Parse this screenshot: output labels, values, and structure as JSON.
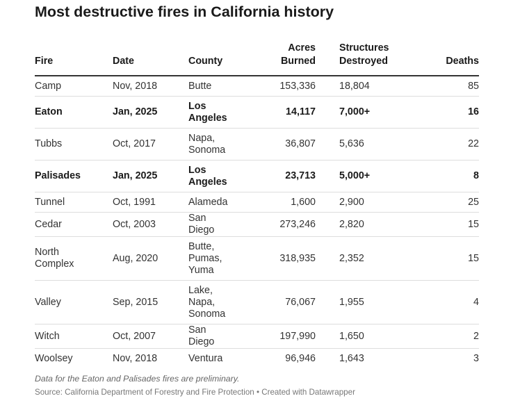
{
  "chart_data": {
    "type": "table",
    "title": "Most destructive fires in California history",
    "columns": [
      {
        "key": "fire",
        "label": "Fire"
      },
      {
        "key": "date",
        "label": "Date"
      },
      {
        "key": "county",
        "label": "County"
      },
      {
        "key": "acres",
        "label": "Acres Burned"
      },
      {
        "key": "structures",
        "label": "Structures Destroyed"
      },
      {
        "key": "deaths",
        "label": "Deaths"
      }
    ],
    "rows": [
      {
        "fire": "Camp",
        "date": "Nov, 2018",
        "county": "Butte",
        "acres": "153,336",
        "structures": "18,804",
        "deaths": "85",
        "highlighted": false
      },
      {
        "fire": "Eaton",
        "date": "Jan, 2025",
        "county": "Los Angeles",
        "acres": "14,117",
        "structures": "7,000+",
        "deaths": "16",
        "highlighted": true
      },
      {
        "fire": "Tubbs",
        "date": "Oct, 2017",
        "county": "Napa, Sonoma",
        "acres": "36,807",
        "structures": "5,636",
        "deaths": "22",
        "highlighted": false
      },
      {
        "fire": "Palisades",
        "date": "Jan, 2025",
        "county": "Los Angeles",
        "acres": "23,713",
        "structures": "5,000+",
        "deaths": "8",
        "highlighted": true
      },
      {
        "fire": "Tunnel",
        "date": "Oct, 1991",
        "county": "Alameda",
        "acres": "1,600",
        "structures": "2,900",
        "deaths": "25",
        "highlighted": false
      },
      {
        "fire": "Cedar",
        "date": "Oct, 2003",
        "county": "San Diego",
        "acres": "273,246",
        "structures": "2,820",
        "deaths": "15",
        "highlighted": false
      },
      {
        "fire": "North Complex",
        "date": "Aug, 2020",
        "county": "Butte, Pumas, Yuma",
        "acres": "318,935",
        "structures": "2,352",
        "deaths": "15",
        "highlighted": false
      },
      {
        "fire": "Valley",
        "date": "Sep, 2015",
        "county": "Lake, Napa, Sonoma",
        "acres": "76,067",
        "structures": "1,955",
        "deaths": "4",
        "highlighted": false
      },
      {
        "fire": "Witch",
        "date": "Oct, 2007",
        "county": "San Diego",
        "acres": "197,990",
        "structures": "1,650",
        "deaths": "2",
        "highlighted": false
      },
      {
        "fire": "Woolsey",
        "date": "Nov, 2018",
        "county": "Ventura",
        "acres": "96,946",
        "structures": "1,643",
        "deaths": "3",
        "highlighted": false
      }
    ],
    "note": "Data for the Eaton and Palisades fires are preliminary.",
    "source": "Source: California Department of Forestry and Fire Protection • Created with Datawrapper"
  }
}
